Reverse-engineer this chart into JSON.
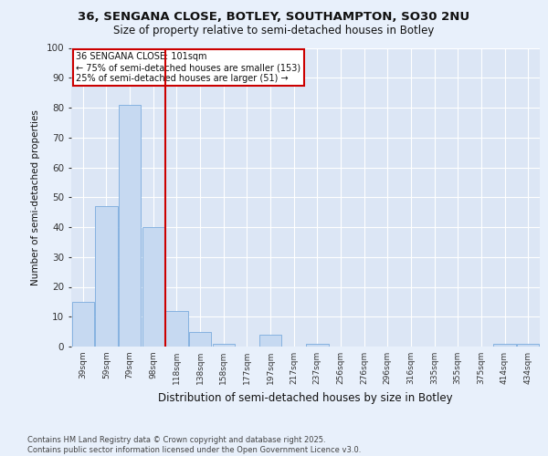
{
  "title_line1": "36, SENGANA CLOSE, BOTLEY, SOUTHAMPTON, SO30 2NU",
  "title_line2": "Size of property relative to semi-detached houses in Botley",
  "xlabel": "Distribution of semi-detached houses by size in Botley",
  "ylabel": "Number of semi-detached properties",
  "categories": [
    "39sqm",
    "59sqm",
    "79sqm",
    "98sqm",
    "118sqm",
    "138sqm",
    "158sqm",
    "177sqm",
    "197sqm",
    "217sqm",
    "237sqm",
    "256sqm",
    "276sqm",
    "296sqm",
    "316sqm",
    "335sqm",
    "355sqm",
    "375sqm",
    "414sqm",
    "434sqm"
  ],
  "values": [
    15,
    47,
    81,
    40,
    12,
    5,
    1,
    0,
    4,
    0,
    1,
    0,
    0,
    0,
    0,
    0,
    0,
    0,
    1,
    1
  ],
  "bar_color": "#c6d9f1",
  "bar_edge_color": "#7aabdd",
  "vline_x_idx": 3,
  "vline_color": "#cc0000",
  "annotation_title": "36 SENGANA CLOSE: 101sqm",
  "annotation_line2": "← 75% of semi-detached houses are smaller (153)",
  "annotation_line3": "25% of semi-detached houses are larger (51) →",
  "annotation_box_color": "#cc0000",
  "ylim": [
    0,
    100
  ],
  "yticks": [
    0,
    10,
    20,
    30,
    40,
    50,
    60,
    70,
    80,
    90,
    100
  ],
  "footer_line1": "Contains HM Land Registry data © Crown copyright and database right 2025.",
  "footer_line2": "Contains public sector information licensed under the Open Government Licence v3.0.",
  "background_color": "#e8f0fb",
  "plot_bg_color": "#dce6f5",
  "grid_color": "#ffffff"
}
